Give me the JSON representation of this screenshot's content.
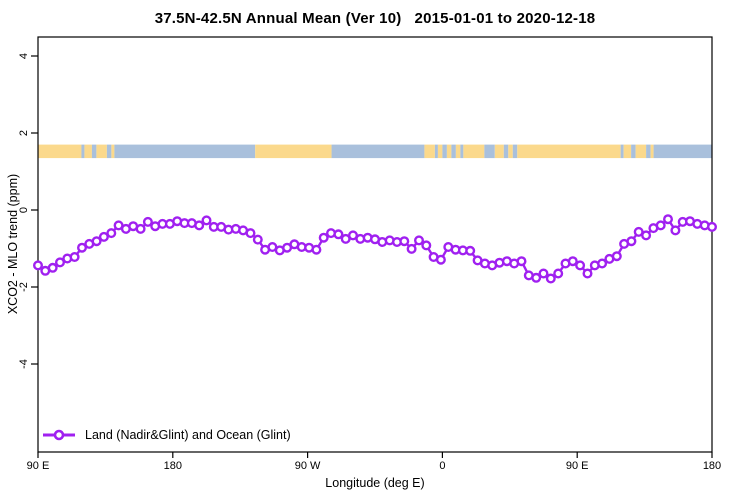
{
  "chart_data": {
    "type": "line",
    "title": "37.5N-42.5N Annual Mean (Ver 10)   2015-01-01 to 2020-12-18",
    "xlabel": "Longitude (deg E)",
    "ylabel": "XCO2 - MLO trend (ppm)",
    "grid": false,
    "legend_position": "bottom-left-inside",
    "x_axis": {
      "start_deg": 90,
      "end_deg": 540,
      "ticks": [
        {
          "deg": 90,
          "label": "90 E"
        },
        {
          "deg": 180,
          "label": "180"
        },
        {
          "deg": 270,
          "label": "90 W"
        },
        {
          "deg": 360,
          "label": "0"
        },
        {
          "deg": 450,
          "label": "90 E"
        },
        {
          "deg": 540,
          "label": "180"
        }
      ]
    },
    "y_axis": {
      "ticks": [
        {
          "value": 4,
          "label": "4"
        },
        {
          "value": 2,
          "label": "2"
        },
        {
          "value": 0,
          "label": "0"
        },
        {
          "value": -2,
          "label": "-2"
        },
        {
          "value": -4,
          "label": "-4"
        }
      ],
      "ylim": [
        -6.3,
        4.5
      ]
    },
    "series": [
      {
        "name": "Land (Nadir&Glint) and Ocean (Glint)",
        "color": "#A020F0",
        "marker": "open-circle",
        "x_start_deg": 90,
        "x_end_deg": 540,
        "values": [
          -1.44,
          -1.58,
          -1.5,
          -1.36,
          -1.26,
          -1.22,
          -0.98,
          -0.88,
          -0.81,
          -0.7,
          -0.6,
          -0.4,
          -0.49,
          -0.42,
          -0.49,
          -0.31,
          -0.42,
          -0.36,
          -0.36,
          -0.29,
          -0.34,
          -0.34,
          -0.4,
          -0.27,
          -0.44,
          -0.44,
          -0.51,
          -0.49,
          -0.53,
          -0.6,
          -0.77,
          -1.03,
          -0.96,
          -1.05,
          -0.98,
          -0.89,
          -0.96,
          -0.98,
          -1.03,
          -0.72,
          -0.6,
          -0.63,
          -0.75,
          -0.66,
          -0.75,
          -0.72,
          -0.76,
          -0.83,
          -0.79,
          -0.83,
          -0.81,
          -1.01,
          -0.79,
          -0.92,
          -1.22,
          -1.29,
          -0.96,
          -1.03,
          -1.05,
          -1.06,
          -1.31,
          -1.39,
          -1.44,
          -1.37,
          -1.33,
          -1.39,
          -1.33,
          -1.7,
          -1.76,
          -1.65,
          -1.78,
          -1.65,
          -1.39,
          -1.33,
          -1.44,
          -1.65,
          -1.44,
          -1.39,
          -1.27,
          -1.2,
          -0.88,
          -0.81,
          -0.57,
          -0.66,
          -0.47,
          -0.4,
          -0.24,
          -0.53,
          -0.31,
          -0.29,
          -0.36,
          -0.4,
          -0.44
        ]
      }
    ],
    "land_ocean_band": {
      "y_range_ppm": [
        1.35,
        1.7
      ],
      "land_color": "#FBD98C",
      "ocean_color": "#A9C0DC",
      "segments": [
        [
          90,
          119,
          "land"
        ],
        [
          119,
          121,
          "ocean"
        ],
        [
          121,
          126,
          "land"
        ],
        [
          126,
          129,
          "ocean"
        ],
        [
          129,
          136,
          "land"
        ],
        [
          136,
          139,
          "ocean"
        ],
        [
          139,
          141,
          "land"
        ],
        [
          141,
          235,
          "ocean"
        ],
        [
          235,
          286,
          "land"
        ],
        [
          286,
          348,
          "ocean"
        ],
        [
          348,
          355,
          "land"
        ],
        [
          355,
          357,
          "ocean"
        ],
        [
          357,
          360,
          "land"
        ],
        [
          360,
          363,
          "ocean"
        ],
        [
          363,
          366,
          "land"
        ],
        [
          366,
          369,
          "ocean"
        ],
        [
          369,
          372,
          "land"
        ],
        [
          372,
          374,
          "ocean"
        ],
        [
          374,
          388,
          "land"
        ],
        [
          388,
          395,
          "ocean"
        ],
        [
          395,
          401,
          "land"
        ],
        [
          401,
          404,
          "ocean"
        ],
        [
          404,
          407,
          "land"
        ],
        [
          407,
          410,
          "ocean"
        ],
        [
          410,
          479,
          "land"
        ],
        [
          479,
          481,
          "ocean"
        ],
        [
          481,
          486,
          "land"
        ],
        [
          486,
          489,
          "ocean"
        ],
        [
          489,
          496,
          "land"
        ],
        [
          496,
          499,
          "ocean"
        ],
        [
          499,
          501,
          "land"
        ],
        [
          501,
          540,
          "ocean"
        ]
      ]
    }
  }
}
